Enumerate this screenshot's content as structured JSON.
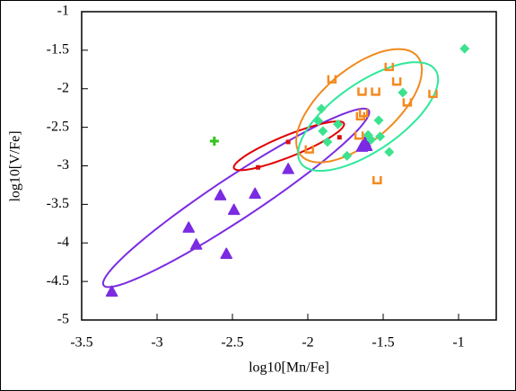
{
  "chart_data": {
    "type": "scatter",
    "x_label": "log10[Mn/Fe]",
    "y_label": "log10[V/Fe]",
    "xlim": [
      -3.5,
      -0.75
    ],
    "ylim": [
      -5,
      -1
    ],
    "xticks": [
      -3.5,
      -3,
      -2.5,
      -2,
      -1.5,
      -1
    ],
    "yticks": [
      -5,
      -4.5,
      -4,
      -3.5,
      -3,
      -2.5,
      -2,
      -1.5,
      -1
    ],
    "series": [
      {
        "color": "#7b2be2",
        "marker": "triangle",
        "x": [
          -3.3,
          -2.79,
          -2.74,
          -2.58,
          -2.54,
          -2.49,
          -2.35,
          -2.13,
          -1.64,
          -1.62,
          -1.61
        ],
        "values": [
          -4.63,
          -3.8,
          -4.02,
          -3.38,
          -4.14,
          -3.57,
          -3.36,
          -3.04,
          -2.75,
          -2.69,
          -2.74
        ]
      },
      {
        "color": "#3ce38e",
        "marker": "diamond",
        "x": [
          -0.96,
          -1.91,
          -1.93,
          -1.9,
          -1.87,
          -1.8,
          -1.74,
          -1.6,
          -1.53,
          -1.52,
          -1.58,
          -1.37,
          -1.46
        ],
        "values": [
          -1.48,
          -2.26,
          -2.42,
          -2.55,
          -2.69,
          -2.46,
          -2.87,
          -2.6,
          -2.41,
          -2.62,
          -2.66,
          -2.05,
          -2.82
        ]
      },
      {
        "color": "#f5891f",
        "marker": "square",
        "x": [
          -1.84,
          -1.46,
          -1.41,
          -1.17,
          -1.34,
          -1.64,
          -1.55,
          -1.63,
          -1.65,
          -1.99,
          -1.54,
          -1.66
        ],
        "values": [
          -1.87,
          -1.71,
          -1.9,
          -2.06,
          -2.17,
          -2.03,
          -2.03,
          -2.31,
          -2.35,
          -2.78,
          -3.18,
          -2.6
        ]
      },
      {
        "color": "#d81010",
        "marker": "dot",
        "x": [
          -1.79,
          -2.33,
          -2.13
        ],
        "values": [
          -2.63,
          -3.02,
          -2.69
        ]
      },
      {
        "color": "#36c21e",
        "marker": "plus",
        "x": [
          -2.62
        ],
        "values": [
          -2.68
        ]
      }
    ],
    "ellipses": [
      {
        "color": "#7b2be2",
        "center": [
          -2.475,
          -3.415
        ],
        "axis1": [
          0.875,
          1.145
        ],
        "axis2": [
          -0.12,
          0.175
        ]
      },
      {
        "color": "#e00000",
        "center": [
          -2.125,
          -2.74
        ],
        "axis1": [
          0.365,
          0.29
        ],
        "axis2": [
          -0.027,
          0.128
        ]
      },
      {
        "color": "#f08a1e",
        "center": [
          -1.66,
          -2.22
        ],
        "axis1": [
          0.387,
          0.641
        ],
        "axis2": [
          -0.155,
          0.36
        ]
      },
      {
        "color": "#2de89a",
        "center": [
          -1.6,
          -2.36
        ],
        "axis1": [
          0.446,
          0.606
        ],
        "axis2": [
          -0.13,
          0.36
        ]
      }
    ]
  }
}
